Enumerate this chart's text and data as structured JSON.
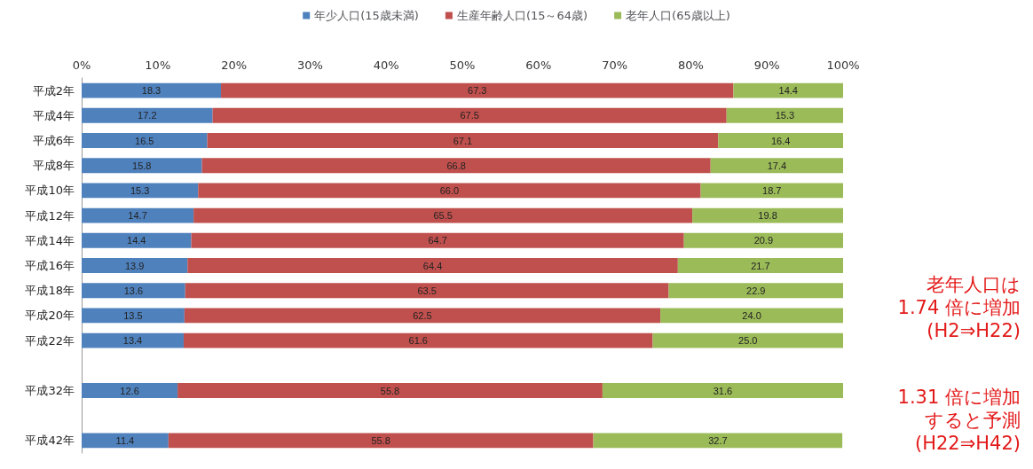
{
  "chart_data": {
    "type": "bar",
    "orientation": "horizontal",
    "stacked": true,
    "categories": [
      "平成2年",
      "平成4年",
      "平成6年",
      "平成8年",
      "平成10年",
      "平成12年",
      "平成14年",
      "平成16年",
      "平成18年",
      "平成20年",
      "平成22年",
      null,
      "平成32年",
      null,
      "平成42年"
    ],
    "series": [
      {
        "name": "年少人口(15歳未満)",
        "color": "#4f81bd",
        "values": [
          18.3,
          17.2,
          16.5,
          15.8,
          15.3,
          14.7,
          14.4,
          13.9,
          13.6,
          13.5,
          13.4,
          null,
          12.6,
          null,
          11.4
        ],
        "value_labels": [
          "18.3",
          "17.2",
          "16.5",
          "15.8",
          "15.3",
          "14.7",
          "14.4",
          "13.9",
          "13.6",
          "13.5",
          "13.4",
          null,
          "12.6",
          null,
          "11.4"
        ]
      },
      {
        "name": "生産年齢人口(15～64歳)",
        "color": "#c0504d",
        "values": [
          67.3,
          67.5,
          67.1,
          66.8,
          66.0,
          65.5,
          64.7,
          64.4,
          63.5,
          62.5,
          61.6,
          null,
          55.8,
          null,
          55.8
        ],
        "value_labels": [
          "67.3",
          "67.5",
          "67.1",
          "66.8",
          "66.0",
          "65.5",
          "64.7",
          "64.4",
          "63.5",
          "62.5",
          "61.6",
          null,
          "55.8",
          null,
          "55.8"
        ]
      },
      {
        "name": "老年人口(65歳以上)",
        "color": "#9bbb59",
        "values": [
          14.4,
          15.3,
          16.4,
          17.4,
          18.7,
          19.8,
          20.9,
          21.7,
          22.9,
          24.0,
          25.0,
          null,
          31.6,
          null,
          32.7
        ],
        "value_labels": [
          "14.4",
          "15.3",
          "16.4",
          "17.4",
          "18.7",
          "19.8",
          "20.9",
          "21.7",
          "22.9",
          "24.0",
          "25.0",
          null,
          "31.6",
          null,
          "32.7"
        ]
      }
    ],
    "xlim": [
      0,
      100
    ],
    "xticks": [
      {
        "value": 0,
        "label": "0%"
      },
      {
        "value": 10,
        "label": "10%"
      },
      {
        "value": 20,
        "label": "20%"
      },
      {
        "value": 30,
        "label": "30%"
      },
      {
        "value": 40,
        "label": "40%"
      },
      {
        "value": 50,
        "label": "50%"
      },
      {
        "value": 60,
        "label": "60%"
      },
      {
        "value": 70,
        "label": "70%"
      },
      {
        "value": 80,
        "label": "80%"
      },
      {
        "value": 90,
        "label": "90%"
      },
      {
        "value": 100,
        "label": "100%"
      }
    ],
    "grid": false,
    "legend": "top",
    "annotations": [
      "老年人口は",
      "1.74 倍に増加",
      "(H2⇒H22)",
      "1.31 倍に増加",
      "すると予測",
      "(H22⇒H42)"
    ]
  }
}
